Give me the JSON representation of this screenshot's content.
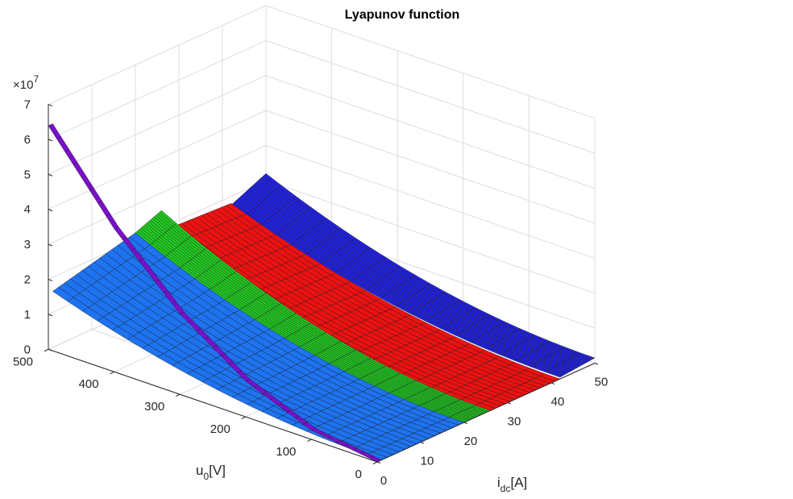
{
  "chart_data": {
    "type": "surface3d",
    "title": "Lyapunov function",
    "xlabel": {
      "main": "i",
      "sub": "dc",
      "unit": "[A]"
    },
    "ylabel": {
      "main": "u",
      "sub": "0",
      "unit": "[V]"
    },
    "zlabel": "",
    "z_exponent": {
      "base": "×10",
      "power": "7"
    },
    "xlim": [
      0,
      50
    ],
    "ylim": [
      0,
      500
    ],
    "zlim": [
      0,
      7
    ],
    "x_ticks": [
      "0",
      "10",
      "20",
      "30",
      "40",
      "50"
    ],
    "y_ticks": [
      "0",
      "100",
      "200",
      "300",
      "400",
      "500"
    ],
    "z_ticks": [
      "0",
      "1",
      "2",
      "3",
      "4",
      "5",
      "6",
      "7"
    ],
    "grid": true,
    "series": [
      {
        "color": "#7a10c9",
        "i_range": [
          0,
          1
        ],
        "z_at_u": [
          [
            0,
            0.0
          ],
          [
            100,
            2.6
          ],
          [
            200,
            10.2
          ],
          [
            300,
            23.0
          ],
          [
            400,
            40.9
          ],
          [
            500,
            63.9
          ]
        ],
        "unit_z": "x1e6"
      },
      {
        "color": "#1e73f0",
        "i_range": [
          1,
          20
        ],
        "z_at_i_u": {
          "i0_u0": 0.0,
          "i1_u0": 0.0,
          "i0_u500": 16.0,
          "i1_u500": 22.0
        },
        "unit_z": "x1e6"
      },
      {
        "color": "#22cc22",
        "i_range": [
          20,
          26
        ],
        "z_at_i_u": {
          "i0_u0": 0.0,
          "i1_u0": 0.0,
          "i0_u500": 22.0,
          "i1_u500": 25.0
        },
        "unit_z": "x1e6"
      },
      {
        "color": "#ee1111",
        "i_range": [
          26,
          42
        ],
        "z_at_i_u": {
          "i0_u0": 0.0,
          "i1_u0": 0.0,
          "i0_u500": 19.0,
          "i1_u500": 18.0
        },
        "unit_z": "x1e6"
      },
      {
        "color": "#2222dd",
        "i_range": [
          42,
          50
        ],
        "z_at_i_u": {
          "i0_u0": 0.5,
          "i1_u0": 1.5,
          "i0_u500": 17.5,
          "i1_u500": 22.0
        },
        "unit_z": "x1e6"
      }
    ]
  }
}
